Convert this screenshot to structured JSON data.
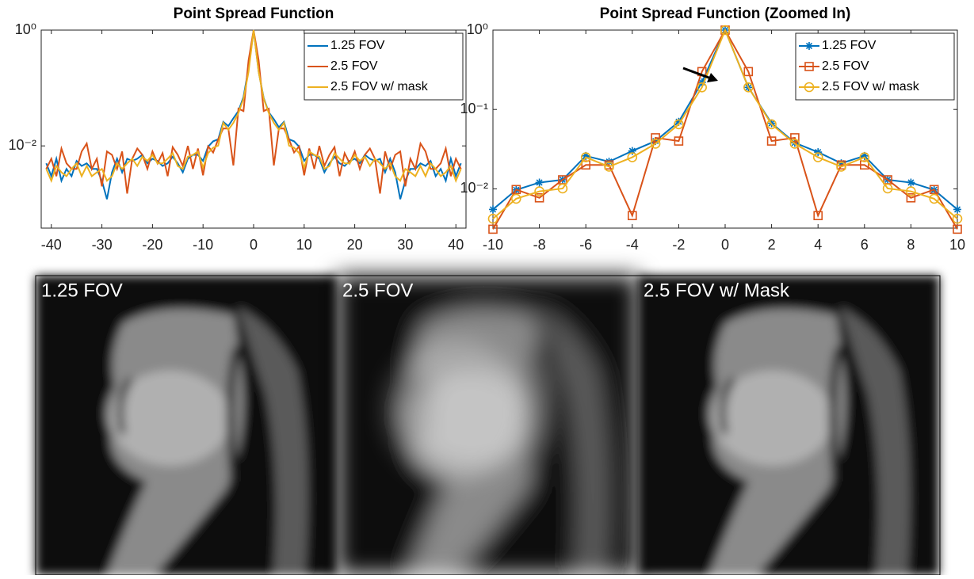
{
  "chart_data": [
    {
      "type": "line",
      "title": "Point Spread Function",
      "log_y": true,
      "legend": "upper right",
      "x": [
        -41,
        -40,
        -39,
        -38,
        -37,
        -36,
        -35,
        -34,
        -33,
        -32,
        -31,
        -30,
        -29,
        -28,
        -27,
        -26,
        -25,
        -24,
        -23,
        -22,
        -21,
        -20,
        -19,
        -18,
        -17,
        -16,
        -15,
        -14,
        -13,
        -12,
        -11,
        -10,
        -9,
        -8,
        -7,
        -6,
        -5,
        -4,
        -3,
        -2,
        -1,
        0,
        1,
        2,
        3,
        4,
        5,
        6,
        7,
        8,
        9,
        10,
        11,
        12,
        13,
        14,
        15,
        16,
        17,
        18,
        19,
        20,
        21,
        22,
        23,
        24,
        25,
        26,
        27,
        28,
        29,
        30,
        31,
        32,
        33,
        34,
        35,
        36,
        37,
        38,
        39,
        40,
        41
      ],
      "series": [
        {
          "name": "1.25 FOV",
          "color": "#0072BD",
          "values": [
            0.005,
            0.003,
            0.006,
            0.0025,
            0.004,
            0.003,
            0.0055,
            0.0045,
            0.005,
            0.004,
            0.004,
            0.0025,
            0.0012,
            0.0035,
            0.006,
            0.0035,
            0.006,
            0.0055,
            0.006,
            0.007,
            0.005,
            0.006,
            0.0055,
            0.0045,
            0.005,
            0.0065,
            0.005,
            0.0035,
            0.006,
            0.007,
            0.007,
            0.0055,
            0.0097,
            0.012,
            0.013,
            0.026,
            0.022,
            0.03,
            0.04,
            0.07,
            0.22,
            1,
            0.19,
            0.067,
            0.038,
            0.029,
            0.021,
            0.026,
            0.013,
            0.012,
            0.0097,
            0.0055,
            0.007,
            0.007,
            0.006,
            0.0035,
            0.005,
            0.0065,
            0.005,
            0.0045,
            0.0055,
            0.006,
            0.005,
            0.007,
            0.006,
            0.0055,
            0.006,
            0.0035,
            0.006,
            0.0035,
            0.0012,
            0.0025,
            0.004,
            0.004,
            0.005,
            0.0045,
            0.0055,
            0.003,
            0.004,
            0.0025,
            0.006,
            0.003,
            0.005
          ]
        },
        {
          "name": "2.5 FOV",
          "color": "#D95319",
          "values": [
            0.004,
            0.006,
            0.003,
            0.009,
            0.005,
            0.004,
            0.004,
            0.008,
            0.011,
            0.004,
            0.006,
            0.002,
            0.008,
            0.007,
            0.004,
            0.008,
            0.0015,
            0.006,
            0.009,
            0.007,
            0.004,
            0.008,
            0.005,
            0.0075,
            0.003,
            0.0095,
            0.007,
            0.0045,
            0.01,
            0.004,
            0.009,
            0.0031,
            0.0098,
            0.0077,
            0.013,
            0.02,
            0.02,
            0.0046,
            0.044,
            0.04,
            0.3,
            1,
            0.3,
            0.04,
            0.044,
            0.0046,
            0.02,
            0.02,
            0.013,
            0.0077,
            0.0098,
            0.0031,
            0.009,
            0.004,
            0.01,
            0.0045,
            0.007,
            0.0095,
            0.003,
            0.0075,
            0.005,
            0.008,
            0.004,
            0.007,
            0.009,
            0.006,
            0.0015,
            0.008,
            0.004,
            0.007,
            0.008,
            0.002,
            0.006,
            0.004,
            0.011,
            0.008,
            0.004,
            0.004,
            0.005,
            0.009,
            0.003,
            0.006,
            0.004
          ]
        },
        {
          "name": "2.5 FOV w/ mask",
          "color": "#EDB120",
          "values": [
            0.004,
            0.0025,
            0.0045,
            0.0035,
            0.003,
            0.004,
            0.005,
            0.003,
            0.0045,
            0.003,
            0.0035,
            0.004,
            0.0025,
            0.003,
            0.005,
            0.004,
            0.005,
            0.006,
            0.0045,
            0.0065,
            0.0055,
            0.007,
            0.005,
            0.005,
            0.006,
            0.0075,
            0.0045,
            0.004,
            0.0065,
            0.007,
            0.008,
            0.0042,
            0.0075,
            0.0093,
            0.0101,
            0.025,
            0.019,
            0.025,
            0.037,
            0.065,
            0.19,
            1,
            0.19,
            0.065,
            0.037,
            0.025,
            0.019,
            0.025,
            0.0101,
            0.0093,
            0.0075,
            0.0042,
            0.008,
            0.007,
            0.0065,
            0.004,
            0.0045,
            0.0075,
            0.006,
            0.005,
            0.005,
            0.007,
            0.0055,
            0.0065,
            0.0045,
            0.006,
            0.005,
            0.004,
            0.005,
            0.003,
            0.0025,
            0.004,
            0.0035,
            0.003,
            0.0045,
            0.003,
            0.005,
            0.004,
            0.003,
            0.0035,
            0.0045,
            0.0025,
            0.004
          ]
        }
      ],
      "xlim": [
        -42,
        42
      ],
      "xticks": [
        -40,
        -30,
        -20,
        -10,
        0,
        10,
        20,
        30,
        40
      ],
      "ylim": [
        0.00038,
        1
      ],
      "yticks": [
        {
          "value": 1,
          "label": "10⁰"
        },
        {
          "value": 0.01,
          "label": "10⁻²"
        }
      ]
    },
    {
      "type": "line",
      "title": "Point Spread Function (Zoomed In)",
      "log_y": true,
      "legend": "upper right",
      "x": [
        -10,
        -9,
        -8,
        -7,
        -6,
        -5,
        -4,
        -3,
        -2,
        -1,
        0,
        1,
        2,
        3,
        4,
        5,
        6,
        7,
        8,
        9,
        10
      ],
      "series": [
        {
          "name": "1.25 FOV",
          "color": "#0072BD",
          "marker": "*",
          "values": [
            0.0055,
            0.0097,
            0.012,
            0.013,
            0.026,
            0.022,
            0.03,
            0.04,
            0.07,
            0.22,
            1,
            0.19,
            0.067,
            0.038,
            0.029,
            0.021,
            0.026,
            0.013,
            0.012,
            0.0097,
            0.0055
          ]
        },
        {
          "name": "2.5 FOV",
          "color": "#D95319",
          "marker": "s",
          "values": [
            0.0031,
            0.0098,
            0.0077,
            0.013,
            0.02,
            0.02,
            0.0046,
            0.044,
            0.04,
            0.3,
            1,
            0.3,
            0.04,
            0.044,
            0.0046,
            0.02,
            0.02,
            0.013,
            0.0077,
            0.0098,
            0.0031
          ]
        },
        {
          "name": "2.5 FOV w/ mask",
          "color": "#EDB120",
          "marker": "o",
          "values": [
            0.0042,
            0.0075,
            0.0093,
            0.0101,
            0.025,
            0.019,
            0.025,
            0.037,
            0.065,
            0.19,
            1,
            0.19,
            0.065,
            0.037,
            0.025,
            0.019,
            0.025,
            0.0101,
            0.0093,
            0.0075,
            0.0042
          ]
        }
      ],
      "xlim": [
        -10,
        10
      ],
      "xticks": [
        -10,
        -8,
        -6,
        -4,
        -2,
        0,
        2,
        4,
        6,
        8,
        10
      ],
      "ylim": [
        0.0032,
        1
      ],
      "yticks": [
        {
          "value": 1,
          "label": "10⁰"
        },
        {
          "value": 0.1,
          "label": "10⁻¹"
        },
        {
          "value": 0.01,
          "label": "10⁻²"
        }
      ]
    }
  ],
  "image_panels": {
    "labels": [
      "1.25 FOV",
      "2.5 FOV",
      "2.5 FOV w/ Mask"
    ]
  }
}
